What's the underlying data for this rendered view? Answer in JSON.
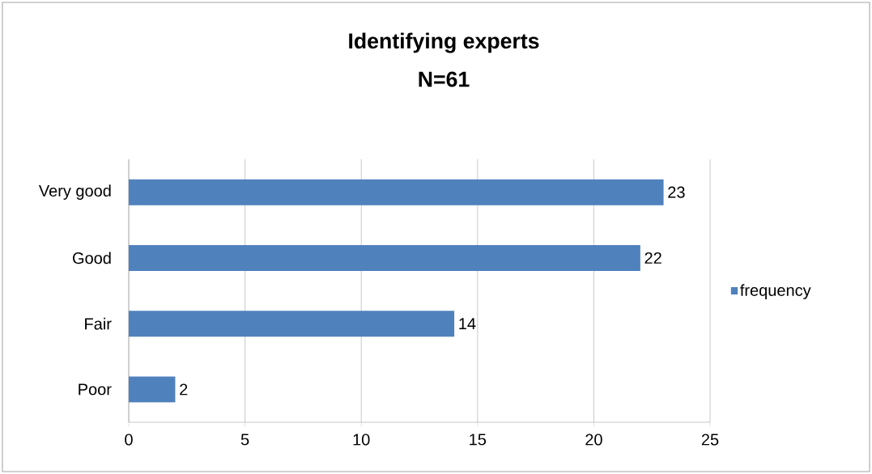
{
  "chart_data": {
    "type": "bar",
    "orientation": "horizontal",
    "title": "Identifying experts",
    "subtitle": "N=61",
    "categories": [
      "Very good",
      "Good",
      "Fair",
      "Poor"
    ],
    "series": [
      {
        "name": "frequency",
        "color": "#4f81bd",
        "values": [
          23,
          22,
          14,
          2
        ]
      }
    ],
    "xlim": [
      0,
      25
    ],
    "xticks": [
      0,
      5,
      10,
      15,
      20,
      25
    ],
    "grid": "x",
    "legend": "right",
    "data_labels": true
  }
}
